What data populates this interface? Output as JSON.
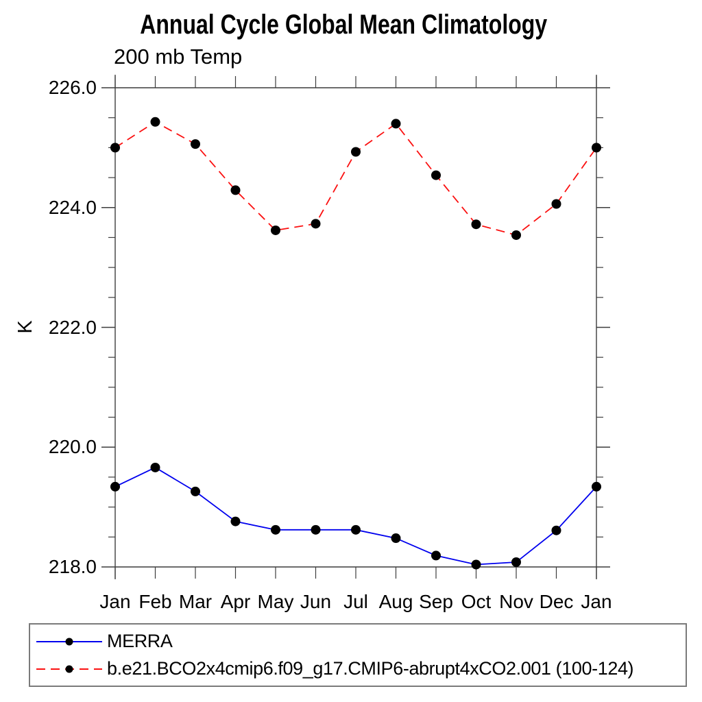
{
  "chart_data": {
    "type": "line",
    "title": "Annual Cycle Global Mean Climatology",
    "subtitle": "200 mb Temp",
    "ylabel": "K",
    "xlabel": "",
    "ylim": [
      218.0,
      226.0
    ],
    "yticks": [
      226.0,
      224.0,
      222.0,
      220.0,
      218.0
    ],
    "ytick_minor_step": 0.5,
    "grid": false,
    "legend_position": "bottom",
    "categories": [
      "Jan",
      "Feb",
      "Mar",
      "Apr",
      "May",
      "Jun",
      "Jul",
      "Aug",
      "Sep",
      "Oct",
      "Nov",
      "Dec",
      "Jan"
    ],
    "series": [
      {
        "name": "MERRA",
        "style": "solid",
        "color": "#0000ee",
        "marker": "black-circle",
        "values": [
          219.34,
          219.66,
          219.26,
          218.76,
          218.62,
          218.62,
          218.62,
          218.48,
          218.19,
          218.04,
          218.08,
          218.61,
          219.34
        ]
      },
      {
        "name": "b.e21.BCO2x4cmip6.f09_g17.CMIP6-abrupt4xCO2.001 (100-124)",
        "style": "dashed",
        "color": "#fb1010",
        "marker": "black-circle",
        "values": [
          225.0,
          225.43,
          225.06,
          224.29,
          223.62,
          223.73,
          224.93,
          225.4,
          224.54,
          223.72,
          223.54,
          224.06,
          225.0
        ]
      }
    ],
    "colors": {
      "axis": "#3c3c3c",
      "marker": "#000000",
      "legend_border": "#7a7a7a",
      "background": "#ffffff"
    }
  }
}
